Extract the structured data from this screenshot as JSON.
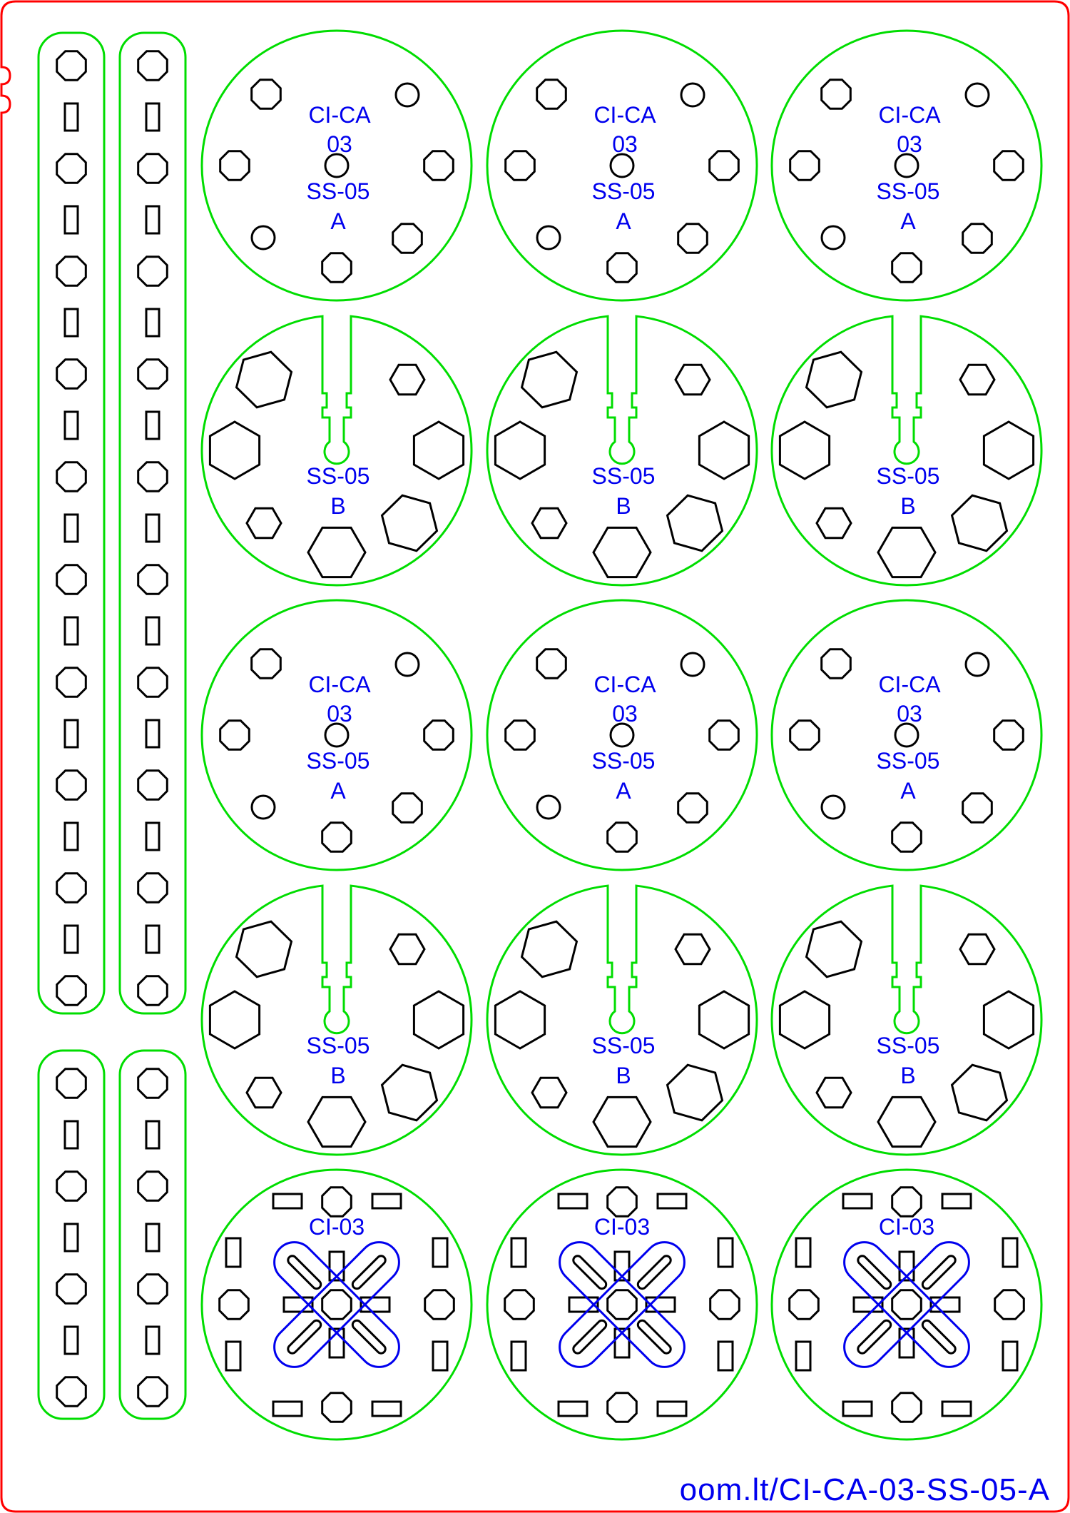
{
  "colors": {
    "border": "#ff0000",
    "outline": "#00dd00",
    "cut": "#000000",
    "text": "#0000ee"
  },
  "part_a": {
    "line1": "CI-CA",
    "line2": "03",
    "line3": "SS-05",
    "line4": "A"
  },
  "part_b": {
    "line1": "SS-05",
    "line2": "B"
  },
  "part_c": {
    "line1": "CI-03"
  },
  "footer": {
    "url": "oom.lt/CI-CA-03-SS-05-A"
  }
}
